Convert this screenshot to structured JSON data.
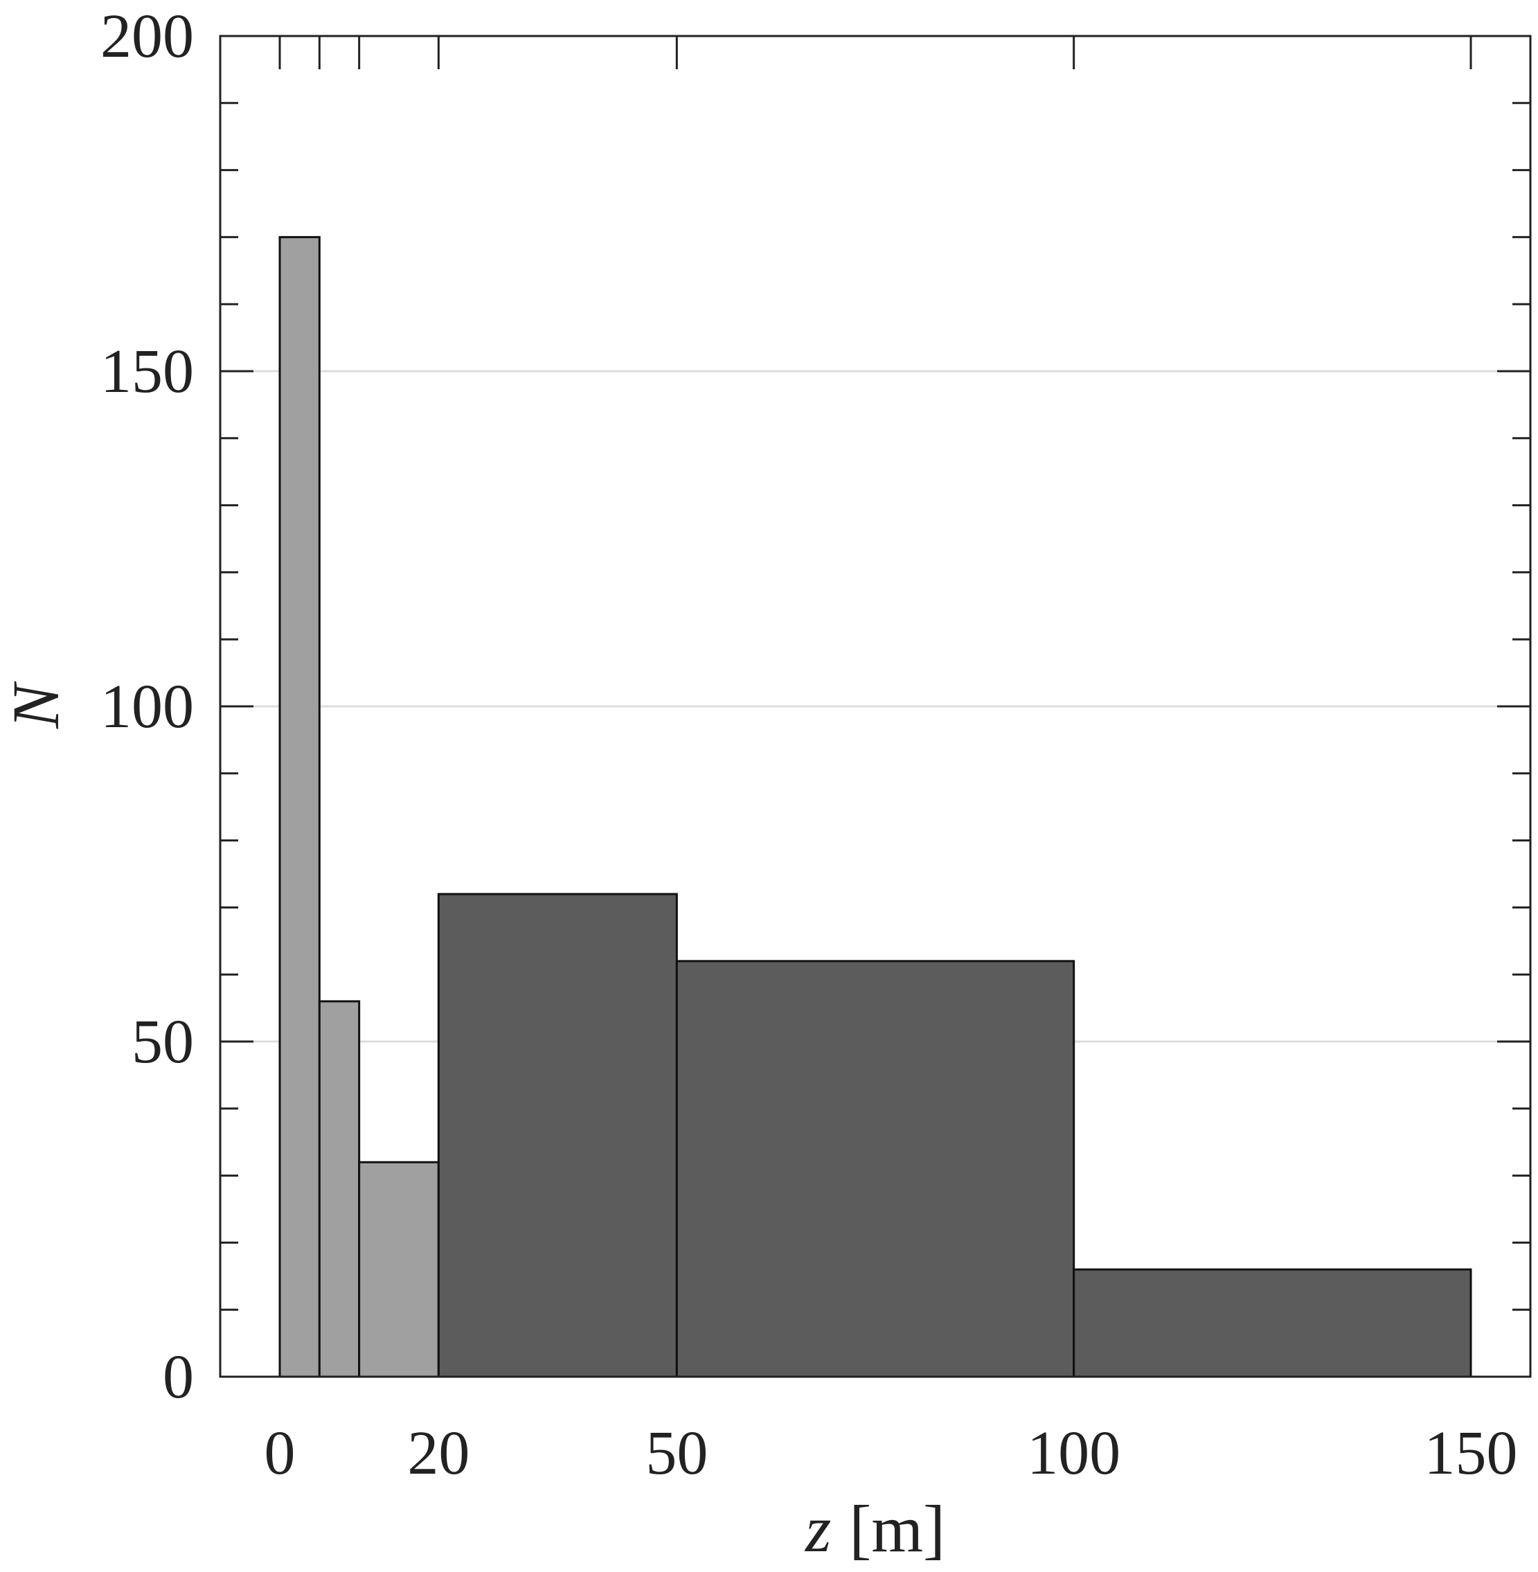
{
  "chart_data": {
    "type": "bar",
    "xlabel": {
      "var": "z",
      "unit": "[m]"
    },
    "ylabel": "N",
    "xlim": [
      -7.5,
      157.5
    ],
    "ylim": [
      0,
      200
    ],
    "x_ticks": [
      0,
      20,
      50,
      100,
      150
    ],
    "x_tick_labels": [
      "0",
      "20",
      "50",
      "100",
      "150"
    ],
    "x_top_ticks": [
      0,
      5,
      10,
      20,
      50,
      100,
      150
    ],
    "y_ticks": [
      0,
      50,
      100,
      150,
      200
    ],
    "y_tick_labels": [
      "0",
      "50",
      "100",
      "150",
      "200"
    ],
    "y_minor_step": 10,
    "grid": {
      "y": true,
      "x": false
    },
    "series": [
      {
        "bins": [
          {
            "x0": 0,
            "x1": 5,
            "value": 170
          },
          {
            "x0": 5,
            "x1": 10,
            "value": 56
          },
          {
            "x0": 10,
            "x1": 20,
            "value": 32
          }
        ],
        "color": "#a0a0a0"
      },
      {
        "bins": [
          {
            "x0": 20,
            "x1": 50,
            "value": 72
          },
          {
            "x0": 50,
            "x1": 100,
            "value": 62
          },
          {
            "x0": 100,
            "x1": 150,
            "value": 16
          }
        ],
        "color": "#5c5c5c"
      }
    ]
  }
}
